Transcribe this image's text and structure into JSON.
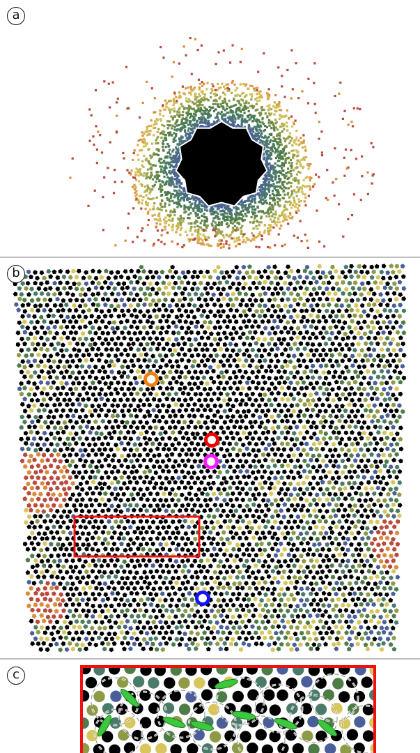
{
  "panels": [
    {
      "id": "a",
      "label": "a"
    },
    {
      "id": "b",
      "label": "b"
    },
    {
      "id": "c",
      "label": "c"
    }
  ],
  "colors": {
    "black": "#000000",
    "red": "#b94a3c",
    "orange": "#d98b3c",
    "yellow": "#d7c65c",
    "olive": "#8e9a46",
    "green": "#4e7c46",
    "teal": "#4a7a6a",
    "blue": "#4a5f9a",
    "highlight_orange": "#f07f12",
    "highlight_red": "#f00000",
    "highlight_magenta": "#ff19ff",
    "highlight_blue": "#1414ff",
    "box_red": "#f01010",
    "leaf_green": "#3cc83c"
  },
  "markers": [
    {
      "name": "orange-ring-marker",
      "color": "highlight_orange"
    },
    {
      "name": "red-ring-marker",
      "color": "highlight_red"
    },
    {
      "name": "magenta-ring-marker",
      "color": "highlight_magenta"
    },
    {
      "name": "blue-ring-marker",
      "color": "highlight_blue"
    }
  ]
}
